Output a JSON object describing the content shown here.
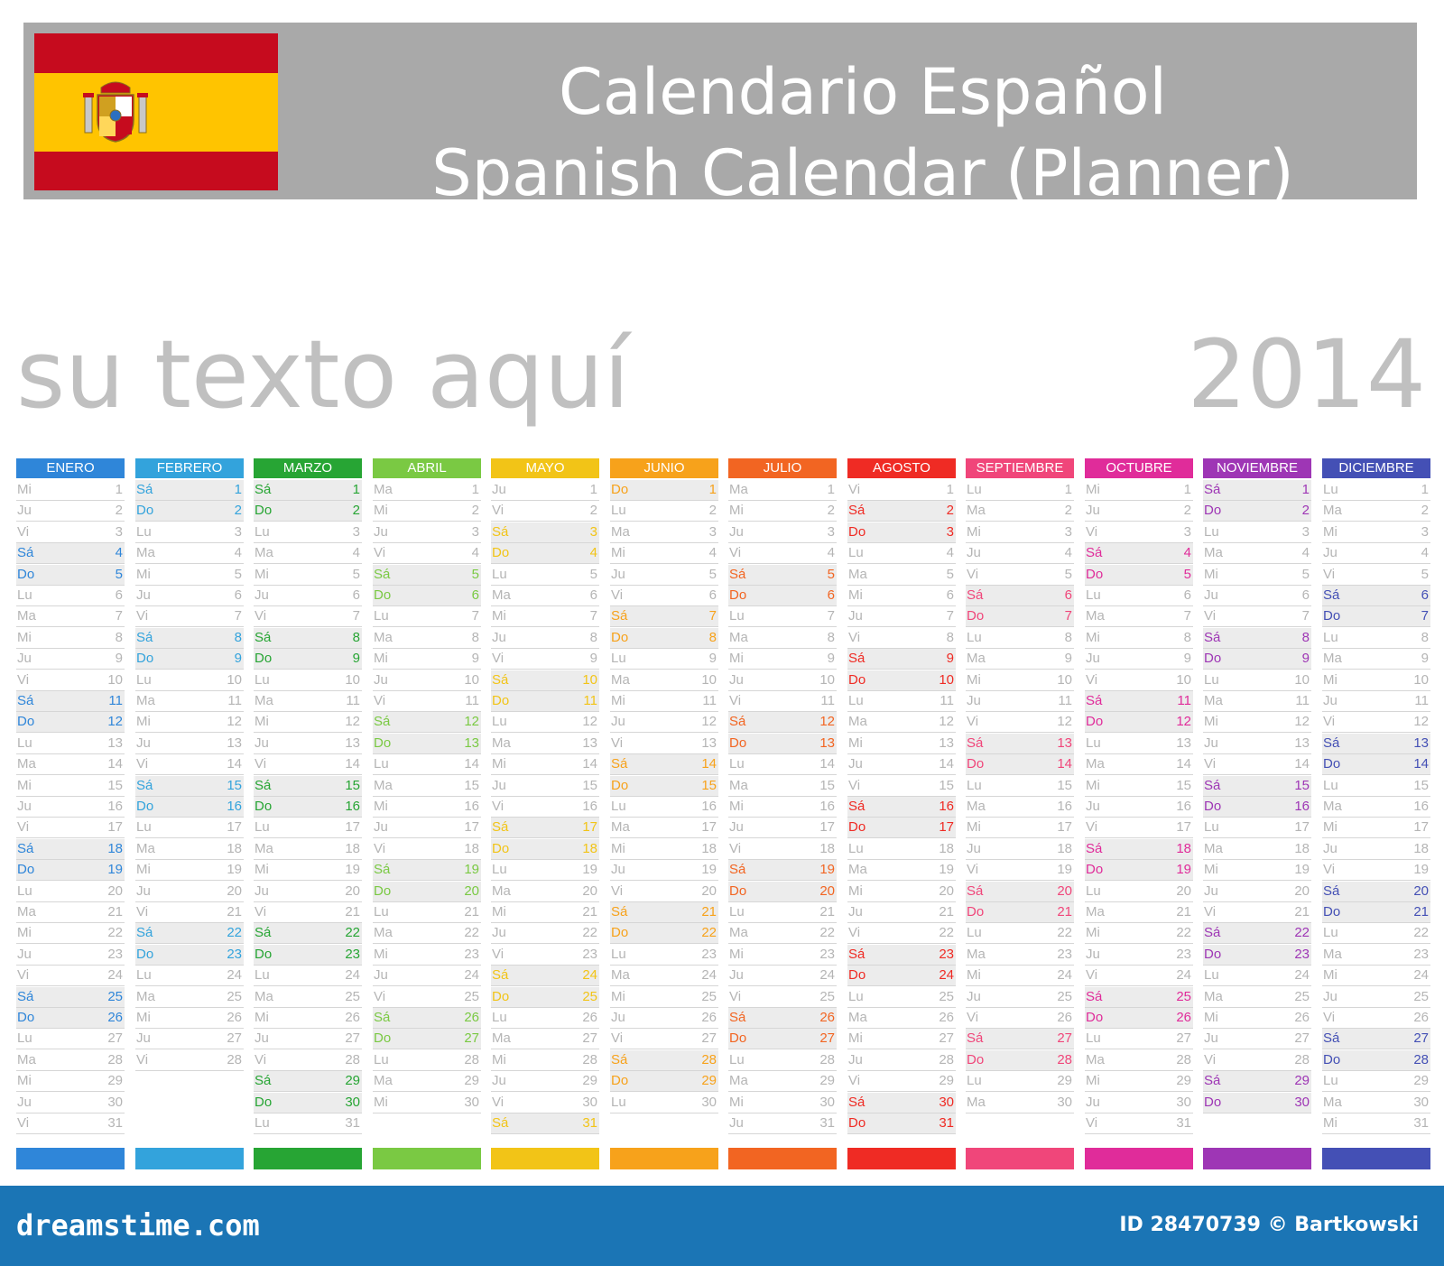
{
  "header": {
    "title_line1": "Calendario Español",
    "title_line2": "Spanish Calendar (Planner)",
    "flag_colors": {
      "red": "#c60b1e",
      "yellow": "#ffc400"
    },
    "flag_emblem": "spanish-coat-of-arms-icon"
  },
  "subtitle": "su texto aquí",
  "year": "2014",
  "weekday_abbreviations": [
    "Lu",
    "Ma",
    "Mi",
    "Ju",
    "Vi",
    "Sá",
    "Do"
  ],
  "months": [
    {
      "name": "ENERO",
      "color": "#2f86d9",
      "start_weekday": 2,
      "days": 31
    },
    {
      "name": "FEBRERO",
      "color": "#33a3dc",
      "start_weekday": 5,
      "days": 28
    },
    {
      "name": "MARZO",
      "color": "#27a534",
      "start_weekday": 5,
      "days": 31
    },
    {
      "name": "ABRIL",
      "color": "#7ac943",
      "start_weekday": 1,
      "days": 30
    },
    {
      "name": "MAYO",
      "color": "#f2c417",
      "start_weekday": 3,
      "days": 31
    },
    {
      "name": "JUNIO",
      "color": "#f7a21b",
      "start_weekday": 6,
      "days": 30
    },
    {
      "name": "JULIO",
      "color": "#f26522",
      "start_weekday": 1,
      "days": 31
    },
    {
      "name": "AGOSTO",
      "color": "#ef2b24",
      "start_weekday": 4,
      "days": 31
    },
    {
      "name": "SEPTIEMBRE",
      "color": "#f0467a",
      "start_weekday": 0,
      "days": 30
    },
    {
      "name": "OCTUBRE",
      "color": "#e02c9a",
      "start_weekday": 2,
      "days": 31
    },
    {
      "name": "NOVIEMBRE",
      "color": "#9e36b5",
      "start_weekday": 5,
      "days": 30
    },
    {
      "name": "DICIEMBRE",
      "color": "#4450b5",
      "start_weekday": 0,
      "days": 31
    }
  ],
  "footer": {
    "brand": "dreamstime.com",
    "image_id": "ID 28470739 © Bartkowski"
  }
}
